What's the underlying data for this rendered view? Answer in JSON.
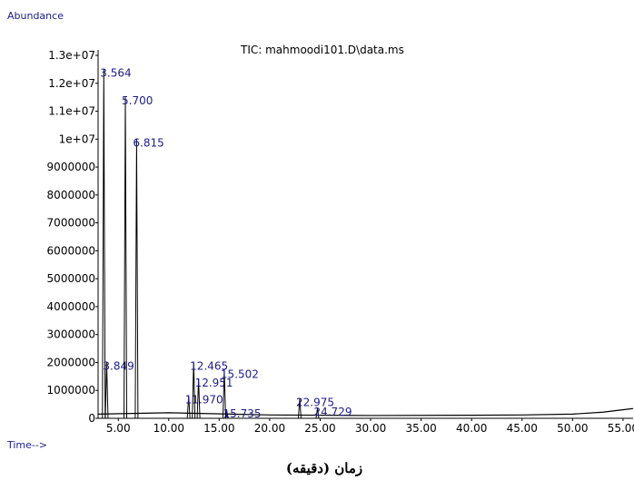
{
  "chart_data": {
    "type": "chromatogram",
    "title": "TIC: mahmoodi101.D\\data.ms",
    "y_label": "Abundance",
    "x_label": "Time-->",
    "caption": "زمان (دقیقه)",
    "color": "#000000",
    "label_color": "#1c1c8a",
    "xlim": [
      3,
      56
    ],
    "ylim": [
      0,
      13000000
    ],
    "xticks": [
      {
        "value": 5,
        "label": "5.00"
      },
      {
        "value": 10,
        "label": "10.00"
      },
      {
        "value": 15,
        "label": "15.00"
      },
      {
        "value": 20,
        "label": "20.00"
      },
      {
        "value": 25,
        "label": "25.00"
      },
      {
        "value": 30,
        "label": "30.00"
      },
      {
        "value": 35,
        "label": "35.00"
      },
      {
        "value": 40,
        "label": "40.00"
      },
      {
        "value": 45,
        "label": "45.00"
      },
      {
        "value": 50,
        "label": "50.00"
      },
      {
        "value": 55,
        "label": "55.00"
      }
    ],
    "yticks": [
      0,
      1000000,
      2000000,
      3000000,
      4000000,
      5000000,
      6000000,
      7000000,
      8000000,
      9000000,
      {
        "value": 10000000,
        "label": "1e+07"
      },
      {
        "value": 11000000,
        "label": "1.1e+07"
      },
      {
        "value": 12000000,
        "label": "1.2e+07"
      },
      {
        "value": 13000000,
        "label": "1.3e+07"
      }
    ],
    "peaks": {
      "x": [
        3.564,
        3.849,
        5.7,
        6.815,
        11.97,
        12.465,
        12.951,
        15.502,
        15.735,
        22.975,
        24.729
      ],
      "labels": [
        "3.564",
        "3.849",
        "5.700",
        "6.815",
        "11.970",
        "12.465",
        "12.951",
        "15.502",
        "15.735",
        "22.975",
        "24.729"
      ],
      "heights": [
        12500000,
        2000000,
        11500000,
        10000000,
        800000,
        2000000,
        1400000,
        1700000,
        300000,
        700000,
        350000
      ]
    },
    "baseline": {
      "x": [
        3,
        10,
        20,
        30,
        40,
        45,
        50,
        53,
        56
      ],
      "values": [
        150000,
        200000,
        120000,
        100000,
        110000,
        120000,
        150000,
        220000,
        350000
      ]
    }
  }
}
